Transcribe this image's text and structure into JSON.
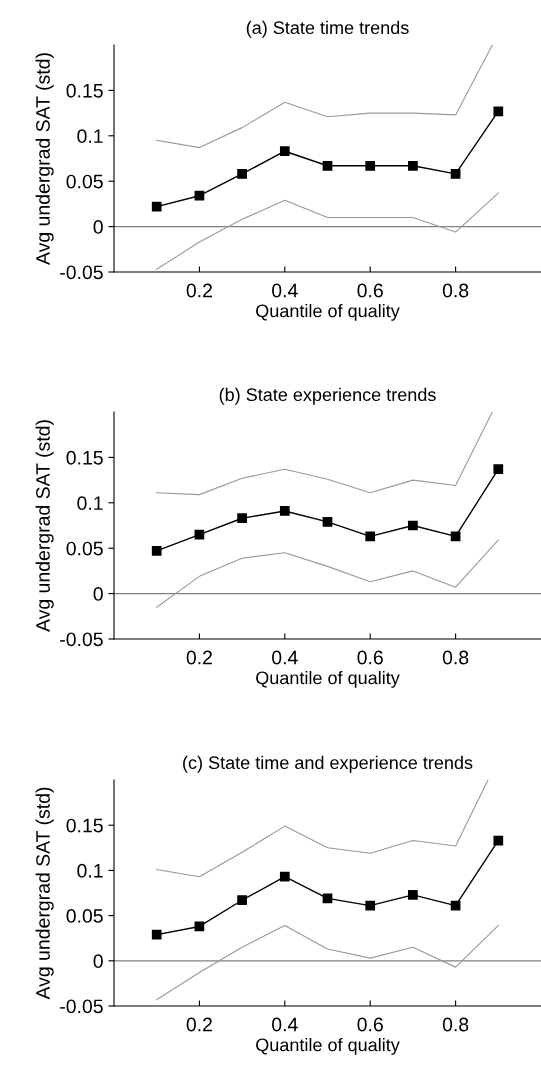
{
  "chart_data": [
    {
      "type": "line",
      "title": "(a) State time trends",
      "xlabel": "Quantile of quality",
      "ylabel": "Avg undergrad SAT (std)",
      "x": [
        0.1,
        0.2,
        0.3,
        0.4,
        0.5,
        0.6,
        0.7,
        0.8,
        0.9
      ],
      "xlim": [
        0,
        1
      ],
      "xticks": [
        0.2,
        0.4,
        0.6,
        0.8
      ],
      "ylim": [
        -0.05,
        0.2
      ],
      "yticks": [
        -0.05,
        0,
        0.05,
        0.1,
        0.15
      ],
      "grid": false,
      "legend": false,
      "ref_lines": [
        {
          "axis": "y",
          "value": 0,
          "color": "#808080"
        }
      ],
      "series": [
        {
          "color": "#000000",
          "marker": "square",
          "values": [
            0.022,
            0.034,
            0.058,
            0.083,
            0.067,
            0.067,
            0.067,
            0.058,
            0.127
          ]
        },
        {
          "color": "#999999",
          "marker": "none",
          "x": [
            0.1,
            0.2,
            0.3,
            0.4,
            0.5,
            0.6,
            0.7,
            0.8,
            0.886
          ],
          "values": [
            0.095,
            0.087,
            0.109,
            0.137,
            0.121,
            0.125,
            0.125,
            0.123,
            0.2
          ]
        },
        {
          "color": "#999999",
          "marker": "none",
          "values": [
            -0.047,
            -0.017,
            0.008,
            0.029,
            0.01,
            0.01,
            0.01,
            -0.006,
            0.037
          ]
        }
      ]
    },
    {
      "type": "line",
      "title": "(b) State experience trends",
      "xlabel": "Quantile of quality",
      "ylabel": "Avg undergrad SAT (std)",
      "x": [
        0.1,
        0.2,
        0.3,
        0.4,
        0.5,
        0.6,
        0.7,
        0.8,
        0.9
      ],
      "xlim": [
        0,
        1
      ],
      "xticks": [
        0.2,
        0.4,
        0.6,
        0.8
      ],
      "ylim": [
        -0.05,
        0.2
      ],
      "yticks": [
        -0.05,
        0,
        0.05,
        0.1,
        0.15
      ],
      "grid": false,
      "legend": false,
      "ref_lines": [
        {
          "axis": "y",
          "value": 0,
          "color": "#808080"
        }
      ],
      "series": [
        {
          "color": "#000000",
          "marker": "square",
          "values": [
            0.047,
            0.065,
            0.083,
            0.091,
            0.079,
            0.063,
            0.075,
            0.063,
            0.137
          ]
        },
        {
          "color": "#999999",
          "marker": "none",
          "x": [
            0.1,
            0.2,
            0.3,
            0.4,
            0.5,
            0.6,
            0.7,
            0.8,
            0.886
          ],
          "values": [
            0.111,
            0.109,
            0.127,
            0.137,
            0.126,
            0.111,
            0.125,
            0.119,
            0.2
          ]
        },
        {
          "color": "#999999",
          "marker": "none",
          "values": [
            -0.015,
            0.019,
            0.039,
            0.045,
            0.03,
            0.013,
            0.025,
            0.007,
            0.059
          ]
        }
      ]
    },
    {
      "type": "line",
      "title": "(c) State time and experience trends",
      "xlabel": "Quantile of quality",
      "ylabel": "Avg undergrad SAT (std)",
      "x": [
        0.1,
        0.2,
        0.3,
        0.4,
        0.5,
        0.6,
        0.7,
        0.8,
        0.9
      ],
      "xlim": [
        0,
        1
      ],
      "xticks": [
        0.2,
        0.4,
        0.6,
        0.8
      ],
      "ylim": [
        -0.05,
        0.2
      ],
      "yticks": [
        -0.05,
        0,
        0.05,
        0.1,
        0.15
      ],
      "grid": false,
      "legend": false,
      "ref_lines": [
        {
          "axis": "y",
          "value": 0,
          "color": "#808080"
        }
      ],
      "series": [
        {
          "color": "#000000",
          "marker": "square",
          "values": [
            0.029,
            0.038,
            0.067,
            0.093,
            0.069,
            0.061,
            0.073,
            0.061,
            0.133
          ]
        },
        {
          "color": "#999999",
          "marker": "none",
          "x": [
            0.1,
            0.2,
            0.3,
            0.4,
            0.5,
            0.6,
            0.7,
            0.8,
            0.876
          ],
          "values": [
            0.101,
            0.093,
            0.12,
            0.149,
            0.125,
            0.119,
            0.133,
            0.127,
            0.2
          ]
        },
        {
          "color": "#999999",
          "marker": "none",
          "values": [
            -0.043,
            -0.013,
            0.015,
            0.039,
            0.013,
            0.003,
            0.015,
            -0.007,
            0.039
          ]
        }
      ]
    }
  ]
}
